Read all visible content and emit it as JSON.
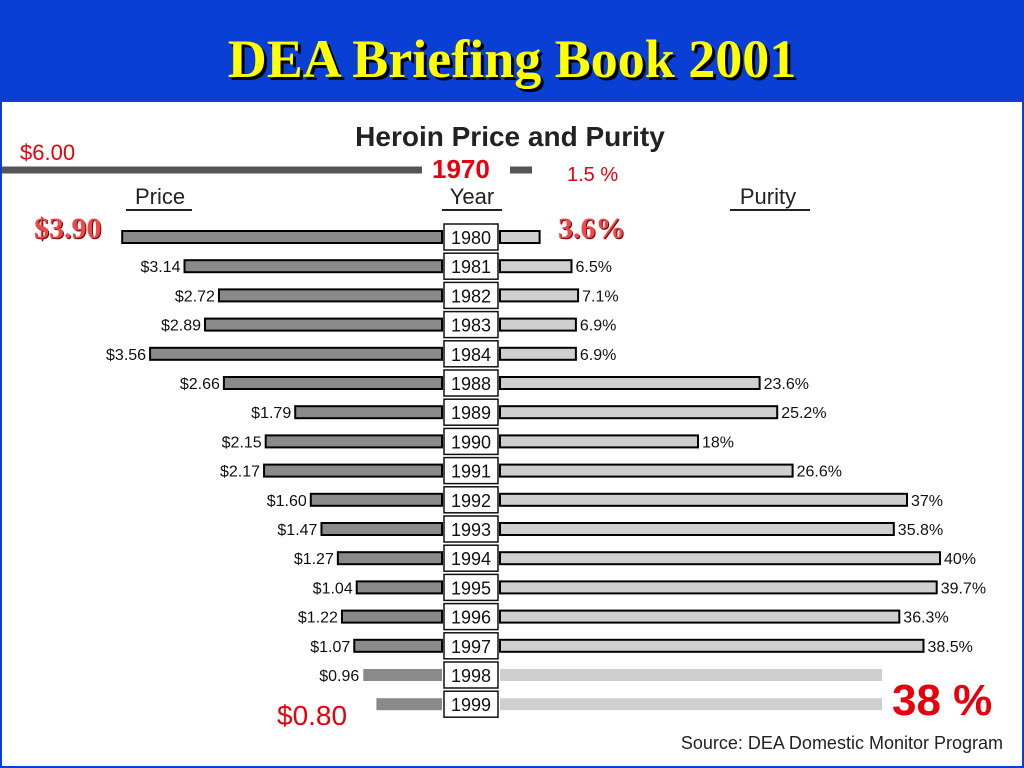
{
  "title": "DEA Briefing Book 2001",
  "chart_data": {
    "type": "bar",
    "title": "Heroin Price and Purity",
    "price_header": "Price",
    "year_header": "Year",
    "purity_header": "Purity",
    "categories": [
      "1980",
      "1981",
      "1982",
      "1983",
      "1984",
      "1988",
      "1989",
      "1990",
      "1991",
      "1992",
      "1993",
      "1994",
      "1995",
      "1996",
      "1997",
      "1998",
      "1999"
    ],
    "series": [
      {
        "name": "Price",
        "values": [
          3.9,
          3.14,
          2.72,
          2.89,
          3.56,
          2.66,
          1.79,
          2.15,
          2.17,
          1.6,
          1.47,
          1.27,
          1.04,
          1.22,
          1.07,
          0.96,
          0.8
        ],
        "labels": [
          "",
          "$3.14",
          "$2.72",
          "$2.89",
          "$3.56",
          "$2.66",
          "$1.79",
          "$2.15",
          "$2.17",
          "$1.60",
          "$1.47",
          "$1.27",
          "$1.04",
          "$1.22",
          "$1.07",
          "$0.96",
          ""
        ]
      },
      {
        "name": "Purity",
        "values": [
          3.6,
          6.5,
          7.1,
          6.9,
          6.9,
          23.6,
          25.2,
          18,
          26.6,
          37,
          35.8,
          40,
          39.7,
          36.3,
          38.5,
          38,
          38
        ],
        "labels": [
          "",
          "6.5%",
          "7.1%",
          "6.9%",
          "6.9%",
          "23.6%",
          "25.2%",
          "18%",
          "26.6%",
          "37%",
          "35.8%",
          "40%",
          "39.7%",
          "36.3%",
          "38.5%",
          "",
          ""
        ]
      }
    ],
    "source": "Source: DEA Domestic Monitor Program",
    "colors": {
      "price_bar": "#8a8a8a",
      "purity_bar": "#cfcfcf",
      "outline": "#000000"
    }
  },
  "annotations": {
    "price_1970": "$6.00",
    "year_1970": "1970",
    "purity_1970": "1.5 %",
    "price_1980": "$3.90",
    "purity_1980": "3.6%",
    "price_1999": "$0.80",
    "purity_1999": "38 %"
  }
}
